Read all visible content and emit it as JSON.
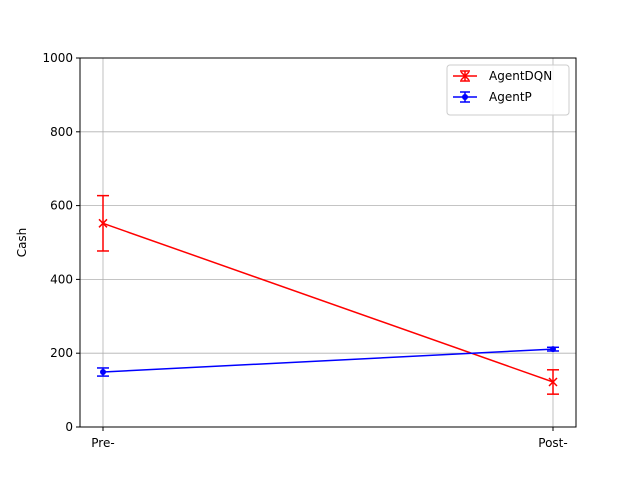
{
  "chart_data": {
    "type": "line",
    "categories": [
      "Pre-",
      "Post-"
    ],
    "xlabel": "",
    "ylabel": "Cash",
    "ylim": [
      0,
      1000
    ],
    "yticks": [
      0,
      200,
      400,
      600,
      800,
      1000
    ],
    "grid": true,
    "legend_position": "top-right",
    "series": [
      {
        "name": "AgentDQN",
        "values": [
          552,
          122
        ],
        "errors": [
          75,
          33
        ],
        "color": "#ff0000",
        "marker": "x"
      },
      {
        "name": "AgentP",
        "values": [
          149,
          211
        ],
        "errors": [
          11,
          5
        ],
        "color": "#0000ff",
        "marker": "dot"
      }
    ]
  }
}
